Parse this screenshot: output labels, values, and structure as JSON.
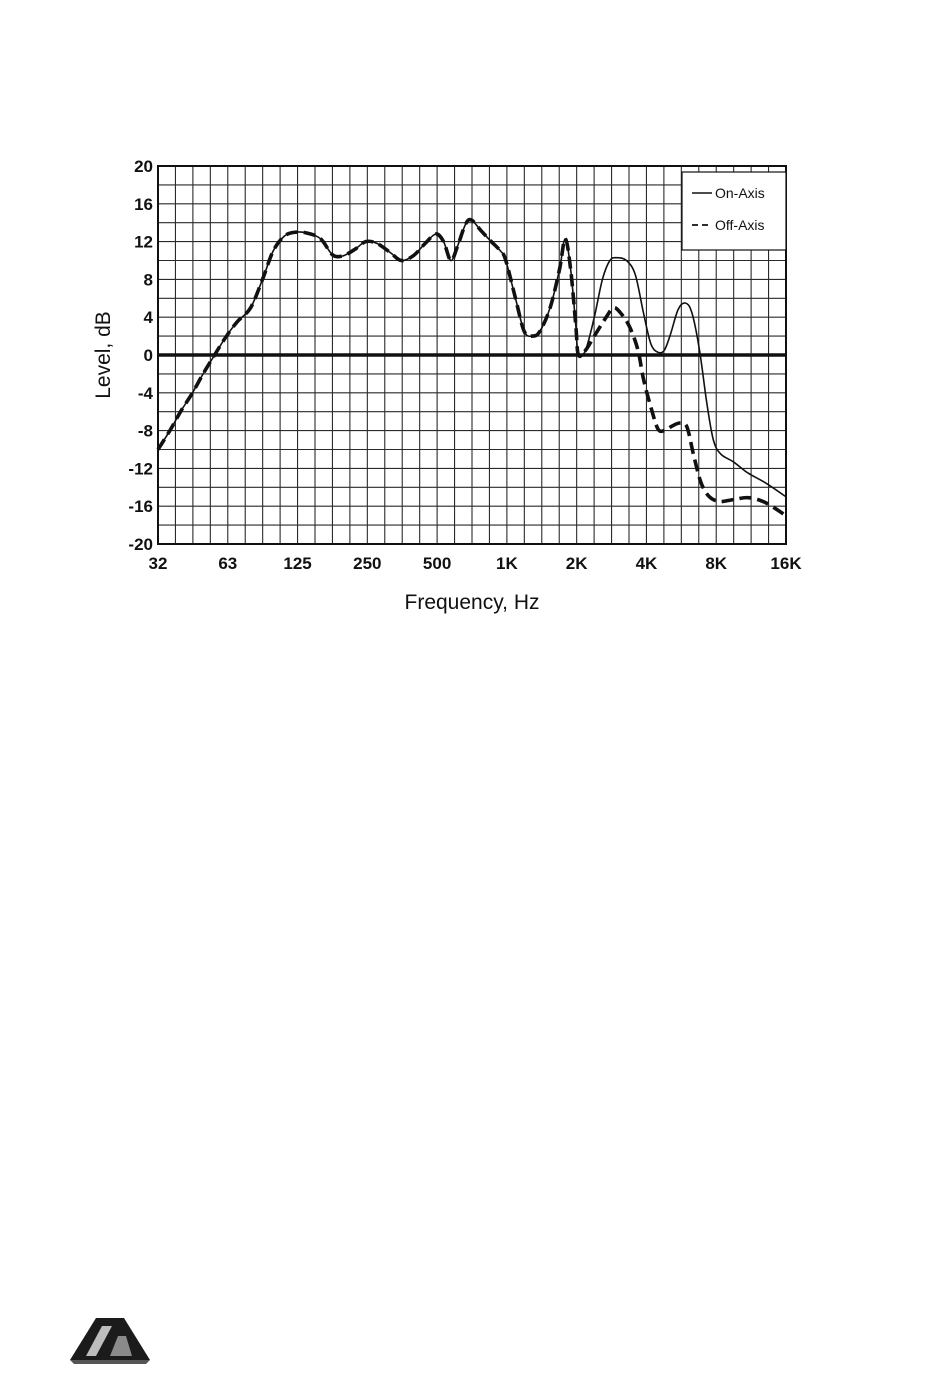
{
  "chart_data": {
    "type": "line",
    "title": "",
    "xlabel": "Frequency, Hz",
    "ylabel": "Level, dB",
    "x_scale": "log2",
    "xlim": [
      32,
      16000
    ],
    "ylim": [
      -20,
      20
    ],
    "x_ticks": [
      32,
      63,
      125,
      250,
      500,
      1000,
      2000,
      4000,
      8000,
      16000
    ],
    "x_tick_labels": [
      "32",
      "63",
      "125",
      "250",
      "500",
      "1K",
      "2K",
      "4K",
      "8K",
      "16K"
    ],
    "y_ticks": [
      20,
      16,
      12,
      8,
      4,
      0,
      -4,
      -8,
      -12,
      -16,
      -20
    ],
    "y_tick_labels": [
      "20",
      "16",
      "12",
      "8",
      "4",
      "0",
      "-4",
      "-8",
      "-12",
      "-16",
      "-20"
    ],
    "grid": true,
    "legend_position": "top-right",
    "series": [
      {
        "name": "On-Axis",
        "style": "solid",
        "points": [
          [
            32,
            -10
          ],
          [
            36,
            -8
          ],
          [
            40,
            -6
          ],
          [
            45,
            -4
          ],
          [
            50,
            -2
          ],
          [
            56,
            0
          ],
          [
            63,
            2
          ],
          [
            70,
            3.5
          ],
          [
            80,
            5
          ],
          [
            90,
            8
          ],
          [
            100,
            11
          ],
          [
            112,
            12.6
          ],
          [
            125,
            13
          ],
          [
            140,
            12.9
          ],
          [
            160,
            12.3
          ],
          [
            180,
            10.6
          ],
          [
            200,
            10.5
          ],
          [
            225,
            11.2
          ],
          [
            250,
            12
          ],
          [
            280,
            11.8
          ],
          [
            320,
            10.8
          ],
          [
            355,
            10
          ],
          [
            400,
            10.5
          ],
          [
            450,
            11.8
          ],
          [
            500,
            12.8
          ],
          [
            540,
            12
          ],
          [
            580,
            10
          ],
          [
            620,
            11.5
          ],
          [
            670,
            13.8
          ],
          [
            710,
            14.3
          ],
          [
            780,
            13.2
          ],
          [
            850,
            12.2
          ],
          [
            950,
            11
          ],
          [
            1000,
            10
          ],
          [
            1100,
            6
          ],
          [
            1200,
            2.5
          ],
          [
            1300,
            2
          ],
          [
            1400,
            2.5
          ],
          [
            1550,
            5
          ],
          [
            1700,
            9
          ],
          [
            1800,
            12.3
          ],
          [
            1900,
            9
          ],
          [
            2000,
            3
          ],
          [
            2050,
            0
          ],
          [
            2200,
            0.5
          ],
          [
            2400,
            4
          ],
          [
            2600,
            8
          ],
          [
            2800,
            10
          ],
          [
            3000,
            10.3
          ],
          [
            3300,
            10
          ],
          [
            3600,
            8.5
          ],
          [
            3900,
            4.5
          ],
          [
            4200,
            1.2
          ],
          [
            4500,
            0.3
          ],
          [
            4800,
            0.5
          ],
          [
            5100,
            2.2
          ],
          [
            5500,
            4.8
          ],
          [
            5900,
            5.5
          ],
          [
            6300,
            4.5
          ],
          [
            6800,
            0.5
          ],
          [
            7300,
            -5
          ],
          [
            7800,
            -9
          ],
          [
            8400,
            -10.5
          ],
          [
            9500,
            -11.3
          ],
          [
            11000,
            -12.5
          ],
          [
            13000,
            -13.5
          ],
          [
            16000,
            -15
          ]
        ]
      },
      {
        "name": "Off-Axis",
        "style": "dashed",
        "points": [
          [
            32,
            -10
          ],
          [
            36,
            -8
          ],
          [
            40,
            -6
          ],
          [
            45,
            -4
          ],
          [
            50,
            -2
          ],
          [
            56,
            0
          ],
          [
            63,
            2
          ],
          [
            70,
            3.5
          ],
          [
            80,
            5
          ],
          [
            90,
            8
          ],
          [
            100,
            11
          ],
          [
            112,
            12.6
          ],
          [
            125,
            13
          ],
          [
            140,
            12.9
          ],
          [
            160,
            12.3
          ],
          [
            180,
            10.6
          ],
          [
            200,
            10.5
          ],
          [
            225,
            11.2
          ],
          [
            250,
            12
          ],
          [
            280,
            11.8
          ],
          [
            320,
            10.8
          ],
          [
            355,
            10
          ],
          [
            400,
            10.5
          ],
          [
            450,
            11.8
          ],
          [
            500,
            12.8
          ],
          [
            540,
            12
          ],
          [
            580,
            10
          ],
          [
            620,
            11.5
          ],
          [
            670,
            13.8
          ],
          [
            710,
            14.3
          ],
          [
            780,
            13.2
          ],
          [
            850,
            12.2
          ],
          [
            950,
            11
          ],
          [
            1000,
            10
          ],
          [
            1100,
            6
          ],
          [
            1200,
            2.5
          ],
          [
            1300,
            2
          ],
          [
            1400,
            2.5
          ],
          [
            1550,
            5
          ],
          [
            1700,
            9
          ],
          [
            1800,
            12.3
          ],
          [
            1900,
            9
          ],
          [
            2000,
            3
          ],
          [
            2050,
            0
          ],
          [
            2200,
            0.5
          ],
          [
            2400,
            2
          ],
          [
            2700,
            4
          ],
          [
            2900,
            5
          ],
          [
            3100,
            4.5
          ],
          [
            3400,
            3
          ],
          [
            3700,
            0.5
          ],
          [
            3900,
            -2.5
          ],
          [
            4200,
            -5.5
          ],
          [
            4500,
            -7.8
          ],
          [
            4800,
            -8
          ],
          [
            5200,
            -7.5
          ],
          [
            5600,
            -7.2
          ],
          [
            6000,
            -7.6
          ],
          [
            6400,
            -10.5
          ],
          [
            6900,
            -13.5
          ],
          [
            7500,
            -15
          ],
          [
            8300,
            -15.5
          ],
          [
            9500,
            -15.3
          ],
          [
            11000,
            -15.1
          ],
          [
            13000,
            -15.6
          ],
          [
            16000,
            -17
          ]
        ]
      }
    ]
  },
  "colors": {
    "ink": "#111111",
    "grid": "#2a2a2a",
    "background": "#ffffff"
  },
  "icons": {
    "logo": "publisher-logo-icon"
  }
}
